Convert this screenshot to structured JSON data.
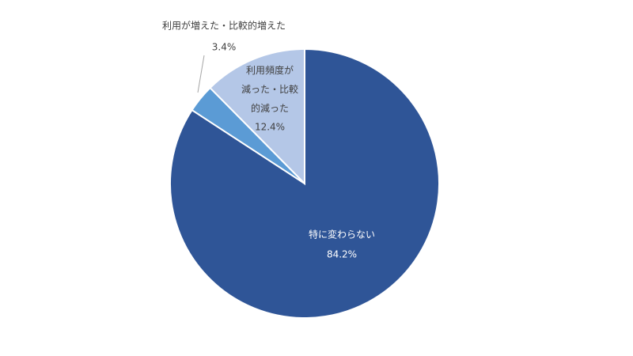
{
  "chart_data": {
    "type": "pie",
    "categories": [
      "特に変わらない",
      "利用が増えた・比較的増えた",
      "利用頻度が減った・比較的減った"
    ],
    "values": [
      84.2,
      3.4,
      12.4
    ],
    "value_labels": [
      "84.2%",
      "3.4%",
      "12.4%"
    ],
    "colors": [
      "#2f5597",
      "#5b9bd5",
      "#b4c7e7"
    ]
  }
}
